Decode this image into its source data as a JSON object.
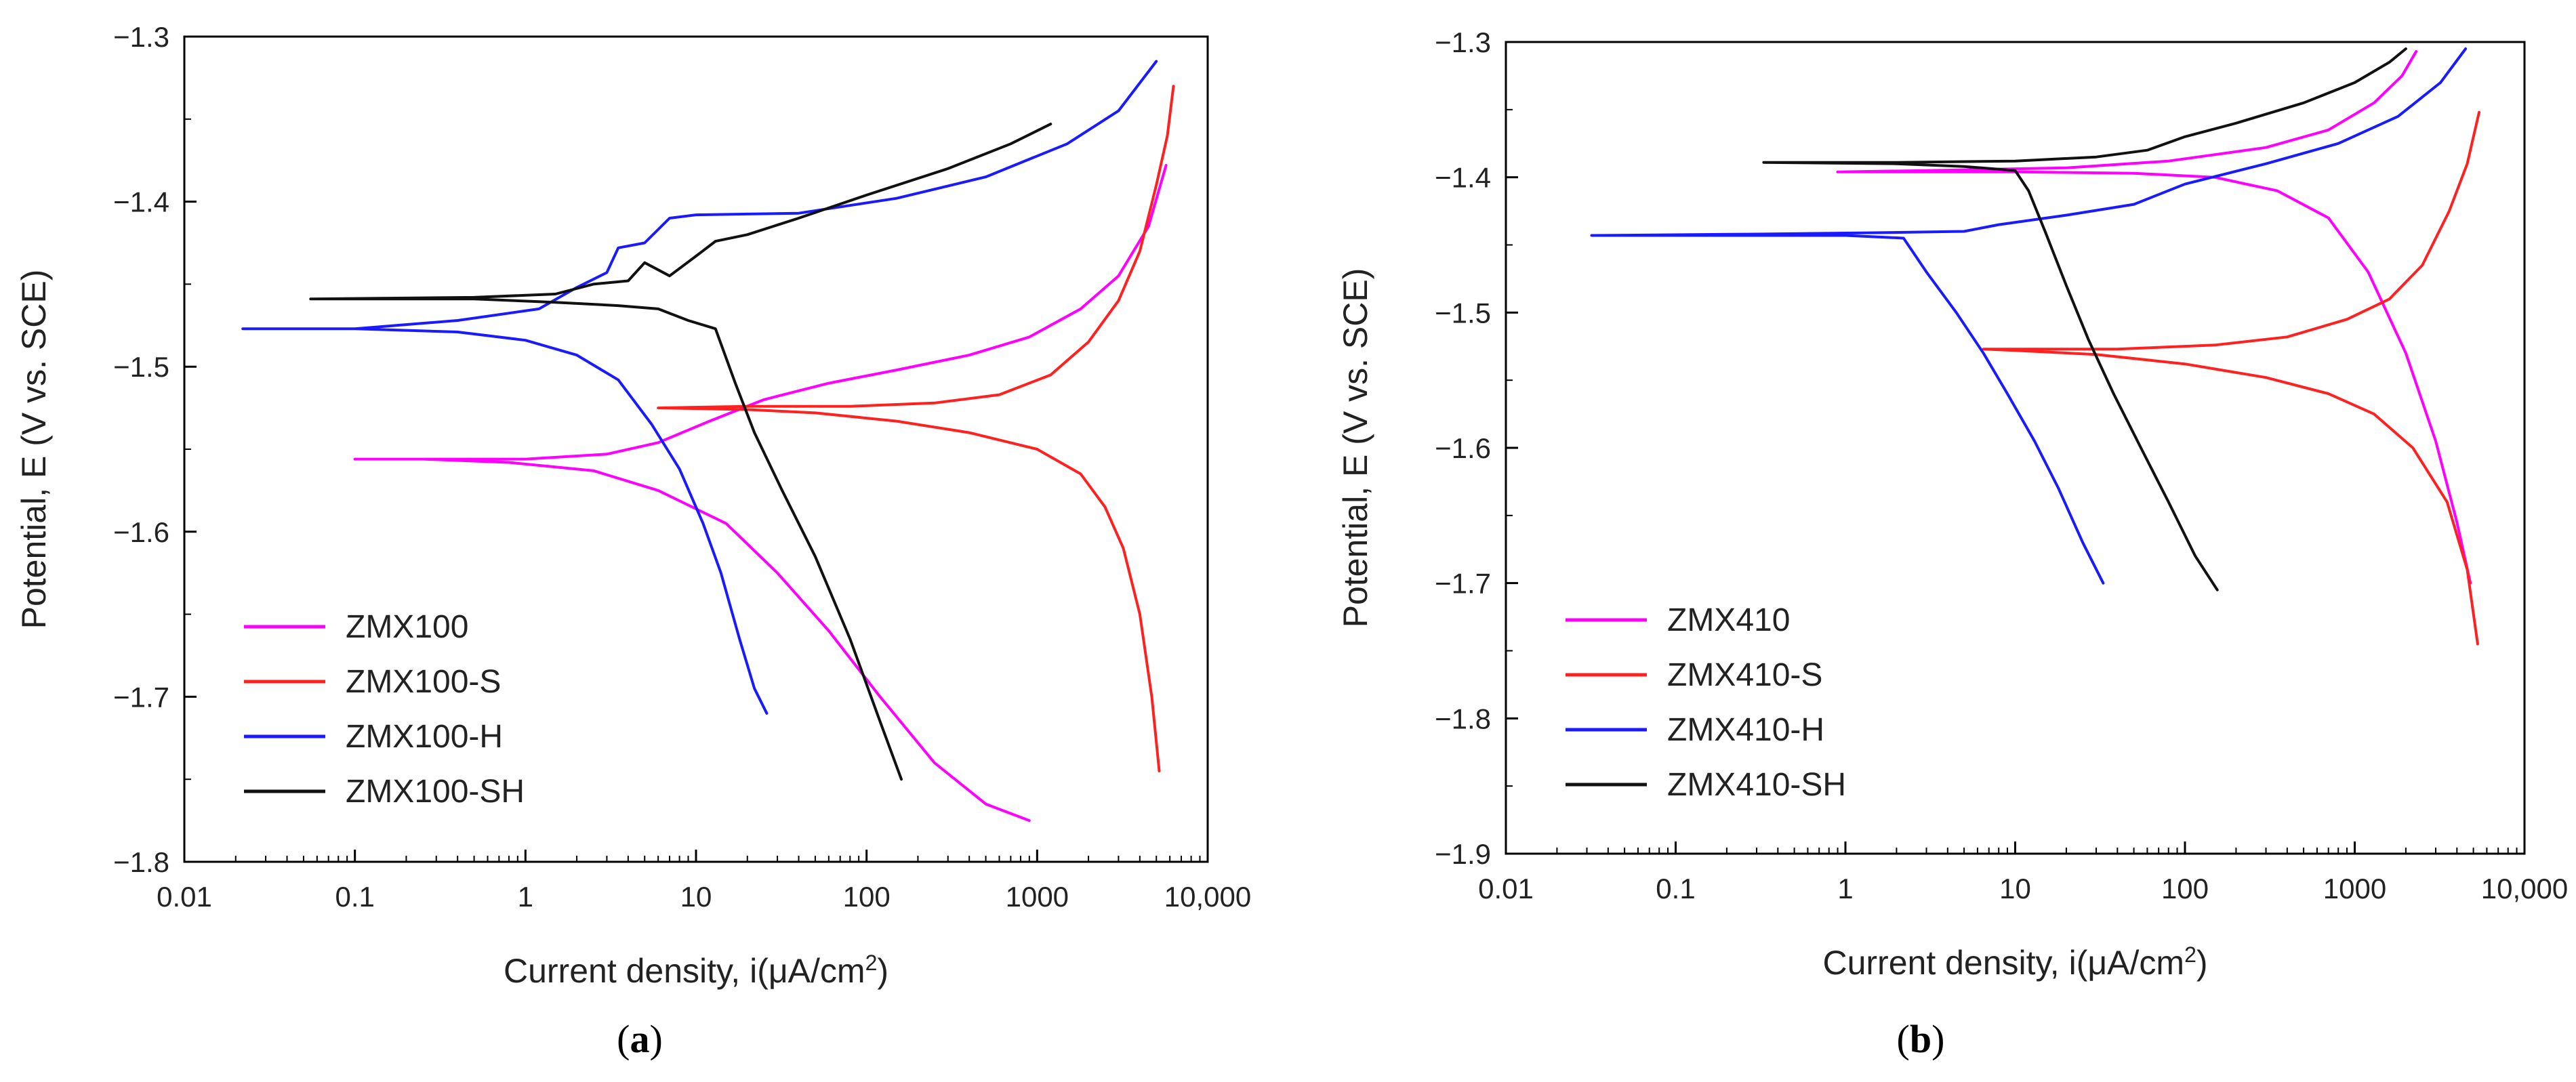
{
  "chart_data": [
    {
      "type": "line",
      "panel": "a",
      "xscale": "log",
      "xlim": [
        0.01,
        10000
      ],
      "ylim": [
        -1.8,
        -1.3
      ],
      "xlabel": "Current density, i(μA/cm²)",
      "ylabel": "Potential, E (V vs. SCE)",
      "xticks": [
        {
          "value": 0.01,
          "label": "0.01"
        },
        {
          "value": 0.1,
          "label": "0.1"
        },
        {
          "value": 1,
          "label": "1"
        },
        {
          "value": 10,
          "label": "10"
        },
        {
          "value": 100,
          "label": "100"
        },
        {
          "value": 1000,
          "label": "1000"
        },
        {
          "value": 10000,
          "label": "10,000"
        }
      ],
      "yticks": [
        {
          "value": -1.3,
          "label": "−1.3"
        },
        {
          "value": -1.4,
          "label": "−1.4"
        },
        {
          "value": -1.5,
          "label": "−1.5"
        },
        {
          "value": -1.6,
          "label": "−1.6"
        },
        {
          "value": -1.7,
          "label": "−1.7"
        },
        {
          "value": -1.8,
          "label": "−1.8"
        }
      ],
      "legend_position": "bottom-left",
      "series": [
        {
          "name": "ZMX100",
          "color": "#ff00ff",
          "points": [
            [
              900,
              -1.775
            ],
            [
              500,
              -1.765
            ],
            [
              250,
              -1.74
            ],
            [
              120,
              -1.7
            ],
            [
              60,
              -1.66
            ],
            [
              30,
              -1.625
            ],
            [
              15,
              -1.595
            ],
            [
              6,
              -1.575
            ],
            [
              2.5,
              -1.563
            ],
            [
              0.8,
              -1.558
            ],
            [
              0.25,
              -1.556
            ],
            [
              0.1,
              -1.556
            ],
            [
              0.25,
              -1.556
            ],
            [
              1,
              -1.556
            ],
            [
              3,
              -1.553
            ],
            [
              6,
              -1.546
            ],
            [
              12,
              -1.533
            ],
            [
              25,
              -1.52
            ],
            [
              60,
              -1.51
            ],
            [
              150,
              -1.502
            ],
            [
              400,
              -1.493
            ],
            [
              900,
              -1.482
            ],
            [
              1800,
              -1.465
            ],
            [
              3000,
              -1.445
            ],
            [
              4500,
              -1.415
            ],
            [
              5700,
              -1.378
            ]
          ]
        },
        {
          "name": "ZMX100-S",
          "color": "#ff2020",
          "points": [
            [
              5200,
              -1.745
            ],
            [
              4700,
              -1.7
            ],
            [
              4000,
              -1.65
            ],
            [
              3200,
              -1.61
            ],
            [
              2500,
              -1.585
            ],
            [
              1800,
              -1.565
            ],
            [
              1000,
              -1.55
            ],
            [
              400,
              -1.54
            ],
            [
              150,
              -1.533
            ],
            [
              50,
              -1.528
            ],
            [
              20,
              -1.526
            ],
            [
              6,
              -1.525
            ],
            [
              20,
              -1.524
            ],
            [
              80,
              -1.524
            ],
            [
              250,
              -1.522
            ],
            [
              600,
              -1.517
            ],
            [
              1200,
              -1.505
            ],
            [
              2000,
              -1.485
            ],
            [
              3000,
              -1.46
            ],
            [
              4000,
              -1.43
            ],
            [
              5000,
              -1.39
            ],
            [
              5800,
              -1.36
            ],
            [
              6300,
              -1.33
            ]
          ]
        },
        {
          "name": "ZMX100-H",
          "color": "#1a1aff",
          "points": [
            [
              26,
              -1.71
            ],
            [
              22,
              -1.695
            ],
            [
              18,
              -1.665
            ],
            [
              14,
              -1.625
            ],
            [
              11,
              -1.595
            ],
            [
              8,
              -1.562
            ],
            [
              5.5,
              -1.535
            ],
            [
              3.5,
              -1.508
            ],
            [
              2,
              -1.493
            ],
            [
              1,
              -1.484
            ],
            [
              0.4,
              -1.479
            ],
            [
              0.1,
              -1.477
            ],
            [
              0.022,
              -1.477
            ],
            [
              0.1,
              -1.477
            ],
            [
              0.4,
              -1.472
            ],
            [
              1.2,
              -1.465
            ],
            [
              2,
              -1.452
            ],
            [
              3,
              -1.443
            ],
            [
              3.5,
              -1.428
            ],
            [
              5,
              -1.425
            ],
            [
              7,
              -1.41
            ],
            [
              10,
              -1.408
            ],
            [
              40,
              -1.407
            ],
            [
              150,
              -1.398
            ],
            [
              500,
              -1.385
            ],
            [
              1500,
              -1.365
            ],
            [
              3000,
              -1.345
            ],
            [
              5000,
              -1.315
            ]
          ]
        },
        {
          "name": "ZMX100-SH",
          "color": "#111111",
          "points": [
            [
              160,
              -1.75
            ],
            [
              120,
              -1.715
            ],
            [
              80,
              -1.665
            ],
            [
              50,
              -1.615
            ],
            [
              32,
              -1.575
            ],
            [
              22,
              -1.54
            ],
            [
              17,
              -1.51
            ],
            [
              13,
              -1.477
            ],
            [
              9,
              -1.472
            ],
            [
              6,
              -1.465
            ],
            [
              3.5,
              -1.463
            ],
            [
              1.5,
              -1.461
            ],
            [
              0.5,
              -1.459
            ],
            [
              0.055,
              -1.459
            ],
            [
              0.5,
              -1.458
            ],
            [
              1.5,
              -1.456
            ],
            [
              2.5,
              -1.45
            ],
            [
              4,
              -1.448
            ],
            [
              5,
              -1.437
            ],
            [
              7,
              -1.445
            ],
            [
              10,
              -1.433
            ],
            [
              13,
              -1.424
            ],
            [
              20,
              -1.42
            ],
            [
              40,
              -1.41
            ],
            [
              100,
              -1.396
            ],
            [
              300,
              -1.38
            ],
            [
              700,
              -1.365
            ],
            [
              1200,
              -1.353
            ]
          ]
        }
      ]
    },
    {
      "type": "line",
      "panel": "b",
      "xscale": "log",
      "xlim": [
        0.01,
        10000
      ],
      "ylim": [
        -1.9,
        -1.3
      ],
      "xlabel": "Current density, i(μA/cm²)",
      "ylabel": "Potential, E (V vs. SCE)",
      "xticks": [
        {
          "value": 0.01,
          "label": "0.01"
        },
        {
          "value": 0.1,
          "label": "0.1"
        },
        {
          "value": 1,
          "label": "1"
        },
        {
          "value": 10,
          "label": "10"
        },
        {
          "value": 100,
          "label": "100"
        },
        {
          "value": 1000,
          "label": "1000"
        },
        {
          "value": 10000,
          "label": "10,000"
        }
      ],
      "yticks": [
        {
          "value": -1.3,
          "label": "−1.3"
        },
        {
          "value": -1.4,
          "label": "−1.4"
        },
        {
          "value": -1.5,
          "label": "−1.5"
        },
        {
          "value": -1.6,
          "label": "−1.6"
        },
        {
          "value": -1.7,
          "label": "−1.7"
        },
        {
          "value": -1.8,
          "label": "−1.8"
        },
        {
          "value": -1.9,
          "label": "−1.9"
        }
      ],
      "legend_position": "bottom-left",
      "series": [
        {
          "name": "ZMX410",
          "color": "#ff00ff",
          "points": [
            [
              4800,
              -1.7
            ],
            [
              4000,
              -1.655
            ],
            [
              3000,
              -1.595
            ],
            [
              2000,
              -1.53
            ],
            [
              1200,
              -1.47
            ],
            [
              700,
              -1.43
            ],
            [
              350,
              -1.41
            ],
            [
              150,
              -1.4
            ],
            [
              50,
              -1.397
            ],
            [
              10,
              -1.396
            ],
            [
              3,
              -1.396
            ],
            [
              0.9,
              -1.396
            ],
            [
              3,
              -1.395
            ],
            [
              20,
              -1.393
            ],
            [
              80,
              -1.388
            ],
            [
              300,
              -1.378
            ],
            [
              700,
              -1.365
            ],
            [
              1300,
              -1.345
            ],
            [
              1900,
              -1.325
            ],
            [
              2300,
              -1.307
            ]
          ]
        },
        {
          "name": "ZMX410-S",
          "color": "#ff2020",
          "points": [
            [
              5300,
              -1.745
            ],
            [
              4600,
              -1.69
            ],
            [
              3500,
              -1.64
            ],
            [
              2200,
              -1.6
            ],
            [
              1300,
              -1.575
            ],
            [
              700,
              -1.56
            ],
            [
              300,
              -1.548
            ],
            [
              100,
              -1.538
            ],
            [
              30,
              -1.531
            ],
            [
              10,
              -1.528
            ],
            [
              6.5,
              -1.527
            ],
            [
              10,
              -1.527
            ],
            [
              40,
              -1.527
            ],
            [
              150,
              -1.524
            ],
            [
              400,
              -1.518
            ],
            [
              900,
              -1.505
            ],
            [
              1600,
              -1.49
            ],
            [
              2500,
              -1.465
            ],
            [
              3600,
              -1.425
            ],
            [
              4600,
              -1.39
            ],
            [
              5400,
              -1.352
            ]
          ]
        },
        {
          "name": "ZMX410-H",
          "color": "#1a1aff",
          "points": [
            [
              33,
              -1.7
            ],
            [
              25,
              -1.67
            ],
            [
              18,
              -1.63
            ],
            [
              13,
              -1.595
            ],
            [
              9,
              -1.56
            ],
            [
              6.5,
              -1.53
            ],
            [
              4.5,
              -1.5
            ],
            [
              3,
              -1.47
            ],
            [
              2.2,
              -1.445
            ],
            [
              1,
              -1.443
            ],
            [
              0.3,
              -1.443
            ],
            [
              0.032,
              -1.443
            ],
            [
              0.3,
              -1.442
            ],
            [
              1.5,
              -1.441
            ],
            [
              5,
              -1.44
            ],
            [
              8,
              -1.435
            ],
            [
              20,
              -1.428
            ],
            [
              50,
              -1.42
            ],
            [
              100,
              -1.405
            ],
            [
              300,
              -1.39
            ],
            [
              800,
              -1.375
            ],
            [
              1800,
              -1.355
            ],
            [
              3200,
              -1.33
            ],
            [
              4500,
              -1.305
            ]
          ]
        },
        {
          "name": "ZMX410-SH",
          "color": "#111111",
          "points": [
            [
              155,
              -1.705
            ],
            [
              115,
              -1.68
            ],
            [
              80,
              -1.64
            ],
            [
              55,
              -1.6
            ],
            [
              38,
              -1.56
            ],
            [
              27,
              -1.52
            ],
            [
              20,
              -1.48
            ],
            [
              15,
              -1.44
            ],
            [
              12,
              -1.41
            ],
            [
              10,
              -1.395
            ],
            [
              5,
              -1.392
            ],
            [
              2,
              -1.39
            ],
            [
              0.33,
              -1.389
            ],
            [
              2,
              -1.389
            ],
            [
              10,
              -1.388
            ],
            [
              30,
              -1.385
            ],
            [
              60,
              -1.38
            ],
            [
              100,
              -1.37
            ],
            [
              200,
              -1.36
            ],
            [
              500,
              -1.345
            ],
            [
              1000,
              -1.33
            ],
            [
              1600,
              -1.315
            ],
            [
              2000,
              -1.305
            ]
          ]
        }
      ]
    }
  ],
  "captions": {
    "a": "a",
    "b": "b"
  }
}
